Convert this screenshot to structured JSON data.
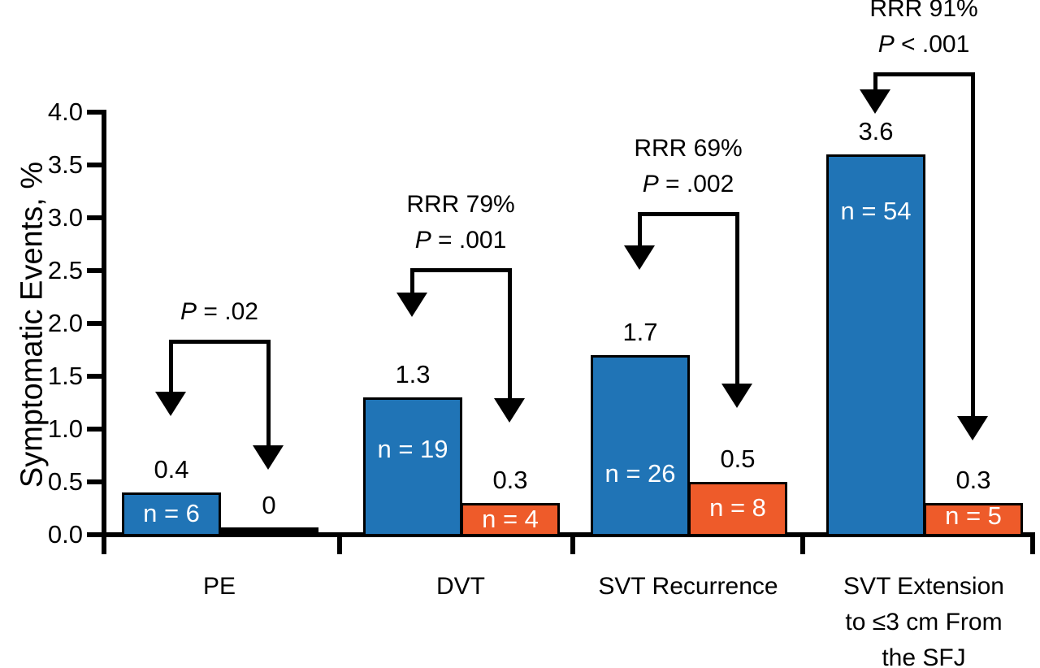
{
  "colors": {
    "bar_blue": "#2074B6",
    "bar_orange": "#EE5B2A",
    "line_black": "#000000",
    "n_label_text": "#FFFFFF",
    "background": "#FFFFFF"
  },
  "chart_data": {
    "type": "bar",
    "title": "",
    "ylabel": "Symptomatic Events, %",
    "xlabel": "",
    "ylim": [
      0.0,
      4.0
    ],
    "ytick_step": 0.5,
    "ytick_labels": [
      "4.0",
      "3.5",
      "3.0",
      "2.5",
      "2.0",
      "1.5",
      "1.0",
      "0.5",
      "0.0"
    ],
    "grid": false,
    "legend": "none",
    "groups": [
      {
        "category_lines": [
          "PE"
        ],
        "bars": [
          {
            "series": "blue",
            "value": 0.4,
            "value_label": "0.4",
            "n_label": "n = 6"
          },
          {
            "series": "orange",
            "value": 0,
            "value_label": "0",
            "n_label": ""
          }
        ],
        "annotation": {
          "lines": [
            {
              "italic": "P",
              "text": " = .02"
            }
          ]
        }
      },
      {
        "category_lines": [
          "DVT"
        ],
        "bars": [
          {
            "series": "blue",
            "value": 1.3,
            "value_label": "1.3",
            "n_label": "n = 19"
          },
          {
            "series": "orange",
            "value": 0.3,
            "value_label": "0.3",
            "n_label": "n = 4"
          }
        ],
        "annotation": {
          "lines": [
            {
              "italic": "",
              "text": "RRR 79%"
            },
            {
              "italic": "P",
              "text": " = .001"
            }
          ]
        }
      },
      {
        "category_lines": [
          "SVT Recurrence"
        ],
        "bars": [
          {
            "series": "blue",
            "value": 1.7,
            "value_label": "1.7",
            "n_label": "n = 26"
          },
          {
            "series": "orange",
            "value": 0.5,
            "value_label": "0.5",
            "n_label": "n = 8"
          }
        ],
        "annotation": {
          "lines": [
            {
              "italic": "",
              "text": "RRR 69%"
            },
            {
              "italic": "P",
              "text": " = .002"
            }
          ]
        }
      },
      {
        "category_lines": [
          "SVT Extension",
          "to ≤3 cm From",
          "the SFJ"
        ],
        "bars": [
          {
            "series": "blue",
            "value": 3.6,
            "value_label": "3.6",
            "n_label": "n = 54"
          },
          {
            "series": "orange",
            "value": 0.3,
            "value_label": "0.3",
            "n_label": "n = 5"
          }
        ],
        "annotation": {
          "lines": [
            {
              "italic": "",
              "text": "RRR 91%"
            },
            {
              "italic": "P",
              "text": " < .001"
            }
          ]
        }
      }
    ]
  }
}
